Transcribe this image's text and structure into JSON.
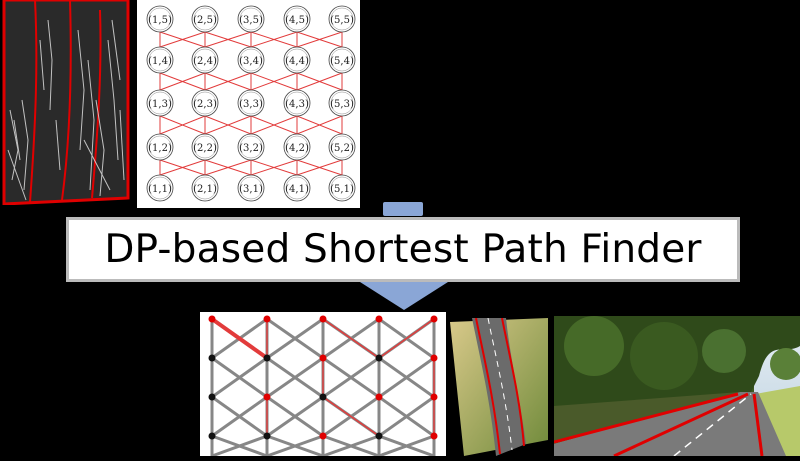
{
  "title": "DP-based Shortest Path Finder",
  "grid": {
    "labels": [
      [
        "(1,5)",
        "(2,5)",
        "(3,5)",
        "(4,5)",
        "(5,5)"
      ],
      [
        "(1,4)",
        "(2,4)",
        "(3,4)",
        "(4,4)",
        "(5,4)"
      ],
      [
        "(1,3)",
        "(2,3)",
        "(3,3)",
        "(4,3)",
        "(5,3)"
      ],
      [
        "(1,2)",
        "(2,2)",
        "(3,2)",
        "(4,2)",
        "(5,2)"
      ],
      [
        "(1,1)",
        "(2,1)",
        "(3,1)",
        "(4,1)",
        "(5,1)"
      ]
    ]
  },
  "colors": {
    "edge_red": "#e23b3b",
    "arrow_blue": "#8aa6d6",
    "node_red": "#e00000",
    "node_black": "#111111"
  }
}
